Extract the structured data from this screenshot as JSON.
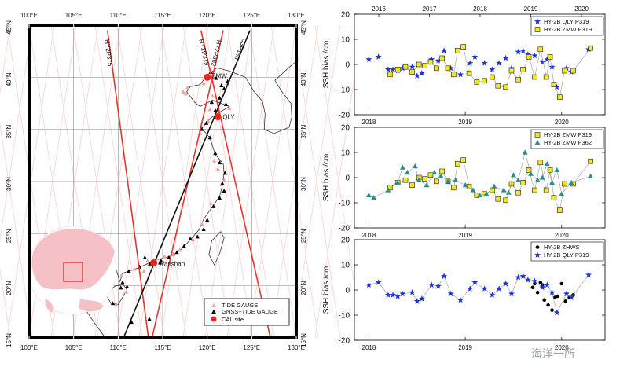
{
  "map": {
    "lon_labels": [
      "100°E",
      "105°E",
      "110°E",
      "115°E",
      "120°E",
      "125°E",
      "130°E"
    ],
    "lat_labels": [
      "15°N",
      "20°N",
      "25°N",
      "30°N",
      "35°N",
      "40°N",
      "45°N"
    ],
    "lon_range": [
      100,
      130
    ],
    "lat_range": [
      15,
      45
    ],
    "tracks": [
      {
        "name": "HY2P375",
        "color": "#e8342a",
        "from": [
          108.8,
          44.5
        ],
        "to": [
          113.4,
          15.0
        ]
      },
      {
        "name": "HY2P319",
        "color": "#e8342a",
        "from": [
          119.3,
          44.5
        ],
        "to": [
          127.1,
          15.0
        ]
      },
      {
        "name": "HY2P362",
        "color": "#e8342a",
        "from": [
          121.8,
          44.5
        ],
        "to": [
          113.8,
          15.0
        ]
      },
      {
        "name": "J3P153",
        "color": "#111111",
        "from": [
          124.8,
          44.5
        ],
        "to": [
          110.6,
          15.0
        ]
      }
    ],
    "track_labels": [
      "HY2P375",
      "HY2P319",
      "HY2P362",
      "J3P153"
    ],
    "cal_sites": [
      {
        "name": "ZMW",
        "lon": 120.0,
        "lat": 40.0
      },
      {
        "name": "QLY",
        "lon": 121.2,
        "lat": 36.2
      },
      {
        "name": "Wanshan",
        "lon": 114.0,
        "lat": 22.2
      }
    ],
    "site_labels": [
      "ZMW",
      "QLY",
      "Wanshan"
    ],
    "gnss_tide": [
      [
        120.4,
        40.5
      ],
      [
        121.0,
        39.9
      ],
      [
        121.6,
        39.2
      ],
      [
        122.3,
        39.6
      ],
      [
        121.9,
        38.9
      ],
      [
        121.4,
        38.0
      ],
      [
        120.5,
        37.6
      ],
      [
        122.1,
        37.4
      ],
      [
        120.9,
        36.8
      ],
      [
        119.9,
        35.6
      ],
      [
        119.4,
        35.0
      ],
      [
        120.3,
        34.2
      ],
      [
        120.9,
        32.7
      ],
      [
        121.4,
        31.8
      ],
      [
        122.0,
        30.8
      ],
      [
        121.7,
        29.8
      ],
      [
        121.9,
        29.1
      ],
      [
        121.4,
        28.4
      ],
      [
        120.7,
        27.6
      ],
      [
        120.0,
        26.3
      ],
      [
        119.6,
        25.4
      ],
      [
        118.9,
        24.7
      ],
      [
        118.1,
        24.5
      ],
      [
        117.4,
        23.8
      ],
      [
        116.6,
        23.2
      ],
      [
        115.7,
        22.7
      ],
      [
        114.8,
        22.4
      ],
      [
        113.6,
        22.1
      ],
      [
        112.4,
        21.8
      ],
      [
        111.2,
        21.4
      ],
      [
        110.5,
        20.3
      ],
      [
        110.3,
        19.8
      ],
      [
        109.4,
        18.3
      ],
      [
        108.7,
        19.4
      ],
      [
        109.6,
        21.5
      ],
      [
        113.0,
        22.7
      ],
      [
        108.3,
        21.6
      ],
      [
        111.0,
        19.9
      ],
      [
        113.5,
        16.8
      ],
      [
        111.5,
        16.5
      ],
      [
        114.7,
        22.2
      ]
    ],
    "tide_gauges": [
      [
        117.8,
        39.0
      ],
      [
        119.6,
        39.4
      ],
      [
        120.6,
        38.2
      ],
      [
        122.5,
        37.0
      ],
      [
        120.1,
        35.8
      ],
      [
        121.2,
        31.2
      ],
      [
        119.2,
        34.6
      ],
      [
        117.3,
        38.6
      ],
      [
        121.6,
        29.7
      ],
      [
        120.4,
        27.9
      ],
      [
        119.4,
        25.9
      ],
      [
        118.4,
        24.4
      ],
      [
        116.9,
        23.4
      ],
      [
        114.3,
        22.6
      ],
      [
        113.4,
        22.0
      ],
      [
        111.8,
        21.6
      ],
      [
        110.4,
        21.0
      ],
      [
        109.3,
        20.8
      ],
      [
        108.6,
        21.7
      ],
      [
        109.8,
        18.2
      ],
      [
        110.9,
        19.4
      ],
      [
        112.9,
        21.4
      ],
      [
        113.3,
        22.4
      ],
      [
        116.2,
        23.0
      ],
      [
        115.2,
        22.8
      ],
      [
        120.8,
        32.0
      ],
      [
        121.9,
        30.1
      ],
      [
        122.2,
        39.4
      ],
      [
        117.6,
        38.4
      ],
      [
        120.3,
        36.9
      ]
    ],
    "legend": [
      "TIDE GAUGE",
      "GNSS+TIDE GAUGE",
      "CAL site"
    ],
    "colors": {
      "tide": "#f2a0a0",
      "gnss": "#000000",
      "cal": "#e8261c",
      "track_red": "#e8342a",
      "land_inset": "#f6c1c6",
      "box": "#d21f1f"
    }
  },
  "chart_data": [
    {
      "type": "scatter",
      "title": "",
      "ylabel": "SSH bias /cm",
      "xlim": [
        2017.85,
        2020.45
      ],
      "ylim": [
        -20,
        20
      ],
      "y_ticks": [
        "-20",
        "-10",
        "0",
        "10",
        "20"
      ],
      "top_ticks": [
        "2016",
        "2017",
        "2018",
        "2019",
        "2020"
      ],
      "bottom_ticks": [
        "2018",
        "2019",
        "2020"
      ],
      "legend": [
        "HY-2B QLY P319",
        "HY-2B ZMW P319"
      ],
      "series": [
        {
          "name": "HY-2B QLY P319",
          "marker": "star",
          "color": "#1f35d8",
          "connect": false,
          "x": [
            2018.0,
            2018.1,
            2018.2,
            2018.25,
            2018.3,
            2018.35,
            2018.45,
            2018.5,
            2018.55,
            2018.65,
            2018.72,
            2018.78,
            2018.85,
            2018.95,
            2019.05,
            2019.1,
            2019.2,
            2019.28,
            2019.35,
            2019.42,
            2019.48,
            2019.55,
            2019.6,
            2019.65,
            2019.72,
            2019.8,
            2019.85,
            2019.9,
            2019.95,
            2020.05,
            2020.1,
            2020.28
          ],
          "y": [
            2.0,
            3.0,
            -2.0,
            -2.0,
            -2.5,
            -1.5,
            -1.0,
            -4.5,
            -3.5,
            2.0,
            1.5,
            5.5,
            -1.5,
            -4.0,
            0.5,
            3.0,
            0.5,
            -2.0,
            0.5,
            2.5,
            -1.5,
            5.0,
            5.5,
            4.0,
            3.5,
            1.0,
            2.0,
            -1.0,
            -9.0,
            -1.5,
            -3.0,
            6.0
          ]
        },
        {
          "name": "HY-2B ZMW P319",
          "marker": "square",
          "color": "#f0e623",
          "connect": true,
          "x": [
            2018.22,
            2018.3,
            2018.38,
            2018.45,
            2018.52,
            2018.58,
            2018.64,
            2018.7,
            2018.76,
            2018.82,
            2018.88,
            2018.92,
            2018.98,
            2019.04,
            2019.12,
            2019.2,
            2019.28,
            2019.34,
            2019.42,
            2019.48,
            2019.55,
            2019.6,
            2019.66,
            2019.72,
            2019.78,
            2019.84,
            2019.88,
            2019.92,
            2019.98,
            2020.03,
            2020.12,
            2020.3
          ],
          "y": [
            -4.0,
            -2.0,
            -1.0,
            -3.0,
            0.0,
            -0.5,
            1.0,
            -1.5,
            2.5,
            -1.5,
            -4.0,
            5.5,
            7.0,
            -3.5,
            -7.0,
            -6.5,
            -5.0,
            -8.5,
            -9.0,
            -2.5,
            -6.0,
            -2.0,
            3.0,
            -5.0,
            6.0,
            -5.0,
            3.0,
            -8.0,
            -13.0,
            -2.5,
            -2.5,
            6.5
          ]
        }
      ]
    },
    {
      "type": "scatter",
      "title": "",
      "ylabel": "SSH bias /cm",
      "xlim": [
        2017.85,
        2020.45
      ],
      "ylim": [
        -20,
        20
      ],
      "y_ticks": [
        "-20",
        "-10",
        "0",
        "10",
        "20"
      ],
      "bottom_ticks": [
        "2018",
        "2019",
        "2020"
      ],
      "legend": [
        "HY-2B ZMW P319",
        "HY-2B ZMW P362"
      ],
      "series": [
        {
          "name": "HY-2B ZMW P319",
          "marker": "square",
          "color": "#f0e623",
          "connect": true,
          "x": [
            2018.22,
            2018.3,
            2018.38,
            2018.45,
            2018.52,
            2018.58,
            2018.64,
            2018.7,
            2018.76,
            2018.82,
            2018.88,
            2018.92,
            2018.98,
            2019.04,
            2019.12,
            2019.2,
            2019.28,
            2019.34,
            2019.42,
            2019.48,
            2019.55,
            2019.6,
            2019.66,
            2019.72,
            2019.78,
            2019.84,
            2019.88,
            2019.92,
            2019.98,
            2020.03,
            2020.12,
            2020.3
          ],
          "y": [
            -4.0,
            -2.0,
            -1.0,
            -3.0,
            0.0,
            -0.5,
            1.0,
            -1.5,
            2.5,
            -1.5,
            -4.0,
            5.5,
            7.0,
            -3.5,
            -7.0,
            -6.5,
            -5.0,
            -8.5,
            -9.0,
            -2.5,
            -6.0,
            -2.0,
            3.0,
            -5.0,
            6.0,
            -5.0,
            3.0,
            -8.0,
            -13.0,
            -2.5,
            -2.5,
            6.5
          ]
        },
        {
          "name": "HY-2B ZMW P362",
          "marker": "triangle",
          "color": "#2b8e8e",
          "connect": true,
          "x": [
            2018.0,
            2018.05,
            2018.2,
            2018.3,
            2018.35,
            2018.4,
            2018.48,
            2018.52,
            2018.6,
            2018.68,
            2018.75,
            2018.82,
            2018.9,
            2019.0,
            2019.08,
            2019.15,
            2019.22,
            2019.3,
            2019.4,
            2019.45,
            2019.5,
            2019.55,
            2019.62,
            2019.68,
            2019.75,
            2019.8,
            2019.85,
            2019.9,
            2019.95,
            2020.0,
            2020.1,
            2020.3
          ],
          "y": [
            -7.0,
            -8.0,
            -5.0,
            -2.0,
            4.0,
            2.0,
            4.5,
            -1.0,
            -3.0,
            2.0,
            0.5,
            -1.5,
            -1.0,
            -3.0,
            -5.0,
            -7.0,
            -6.5,
            -3.5,
            -5.0,
            -6.0,
            1.0,
            -1.0,
            10.0,
            1.5,
            -1.0,
            0.0,
            5.5,
            -2.0,
            3.0,
            -6.5,
            -2.0,
            0.5
          ]
        }
      ]
    },
    {
      "type": "scatter",
      "title": "",
      "ylabel": "SSH bias /cm",
      "xlim": [
        2017.85,
        2020.45
      ],
      "ylim": [
        -20,
        20
      ],
      "y_ticks": [
        "-20",
        "-10",
        "0",
        "10",
        "20"
      ],
      "bottom_ticks": [
        "2018",
        "2019",
        "2020"
      ],
      "legend": [
        "HY-2B ZHWS",
        "HY-2B QLY P319"
      ],
      "series": [
        {
          "name": "HY-2B ZHWS",
          "marker": "circle",
          "color": "#000000",
          "connect": false,
          "x": [
            2019.7,
            2019.75,
            2019.8,
            2019.82,
            2019.86,
            2019.9,
            2019.93,
            2019.96,
            2020.0,
            2020.04,
            2020.08,
            2020.12,
            2019.78,
            2019.72
          ],
          "y": [
            1.0,
            -1.0,
            2.0,
            -4.0,
            -6.0,
            -8.0,
            -3.0,
            -2.5,
            2.5,
            -4.5,
            -3.0,
            -2.0,
            3.0,
            2.5
          ]
        },
        {
          "name": "HY-2B QLY P319",
          "marker": "star",
          "color": "#1f35d8",
          "connect": true,
          "x": [
            2018.0,
            2018.1,
            2018.2,
            2018.25,
            2018.3,
            2018.35,
            2018.45,
            2018.5,
            2018.55,
            2018.65,
            2018.72,
            2018.78,
            2018.85,
            2018.95,
            2019.05,
            2019.1,
            2019.2,
            2019.28,
            2019.35,
            2019.42,
            2019.48,
            2019.55,
            2019.6,
            2019.65,
            2019.72,
            2019.8,
            2019.85,
            2019.9,
            2019.95,
            2020.05,
            2020.1,
            2020.28
          ],
          "y": [
            2.0,
            3.0,
            -2.0,
            -2.0,
            -2.5,
            -1.5,
            -1.0,
            -4.5,
            -3.5,
            2.0,
            1.5,
            5.5,
            -1.5,
            -4.0,
            0.5,
            3.0,
            0.5,
            -2.0,
            0.5,
            2.5,
            -1.5,
            5.0,
            5.5,
            4.0,
            3.5,
            1.0,
            2.0,
            -1.0,
            -9.0,
            -1.5,
            -3.0,
            6.0
          ]
        }
      ]
    }
  ],
  "watermark": "海洋一所"
}
